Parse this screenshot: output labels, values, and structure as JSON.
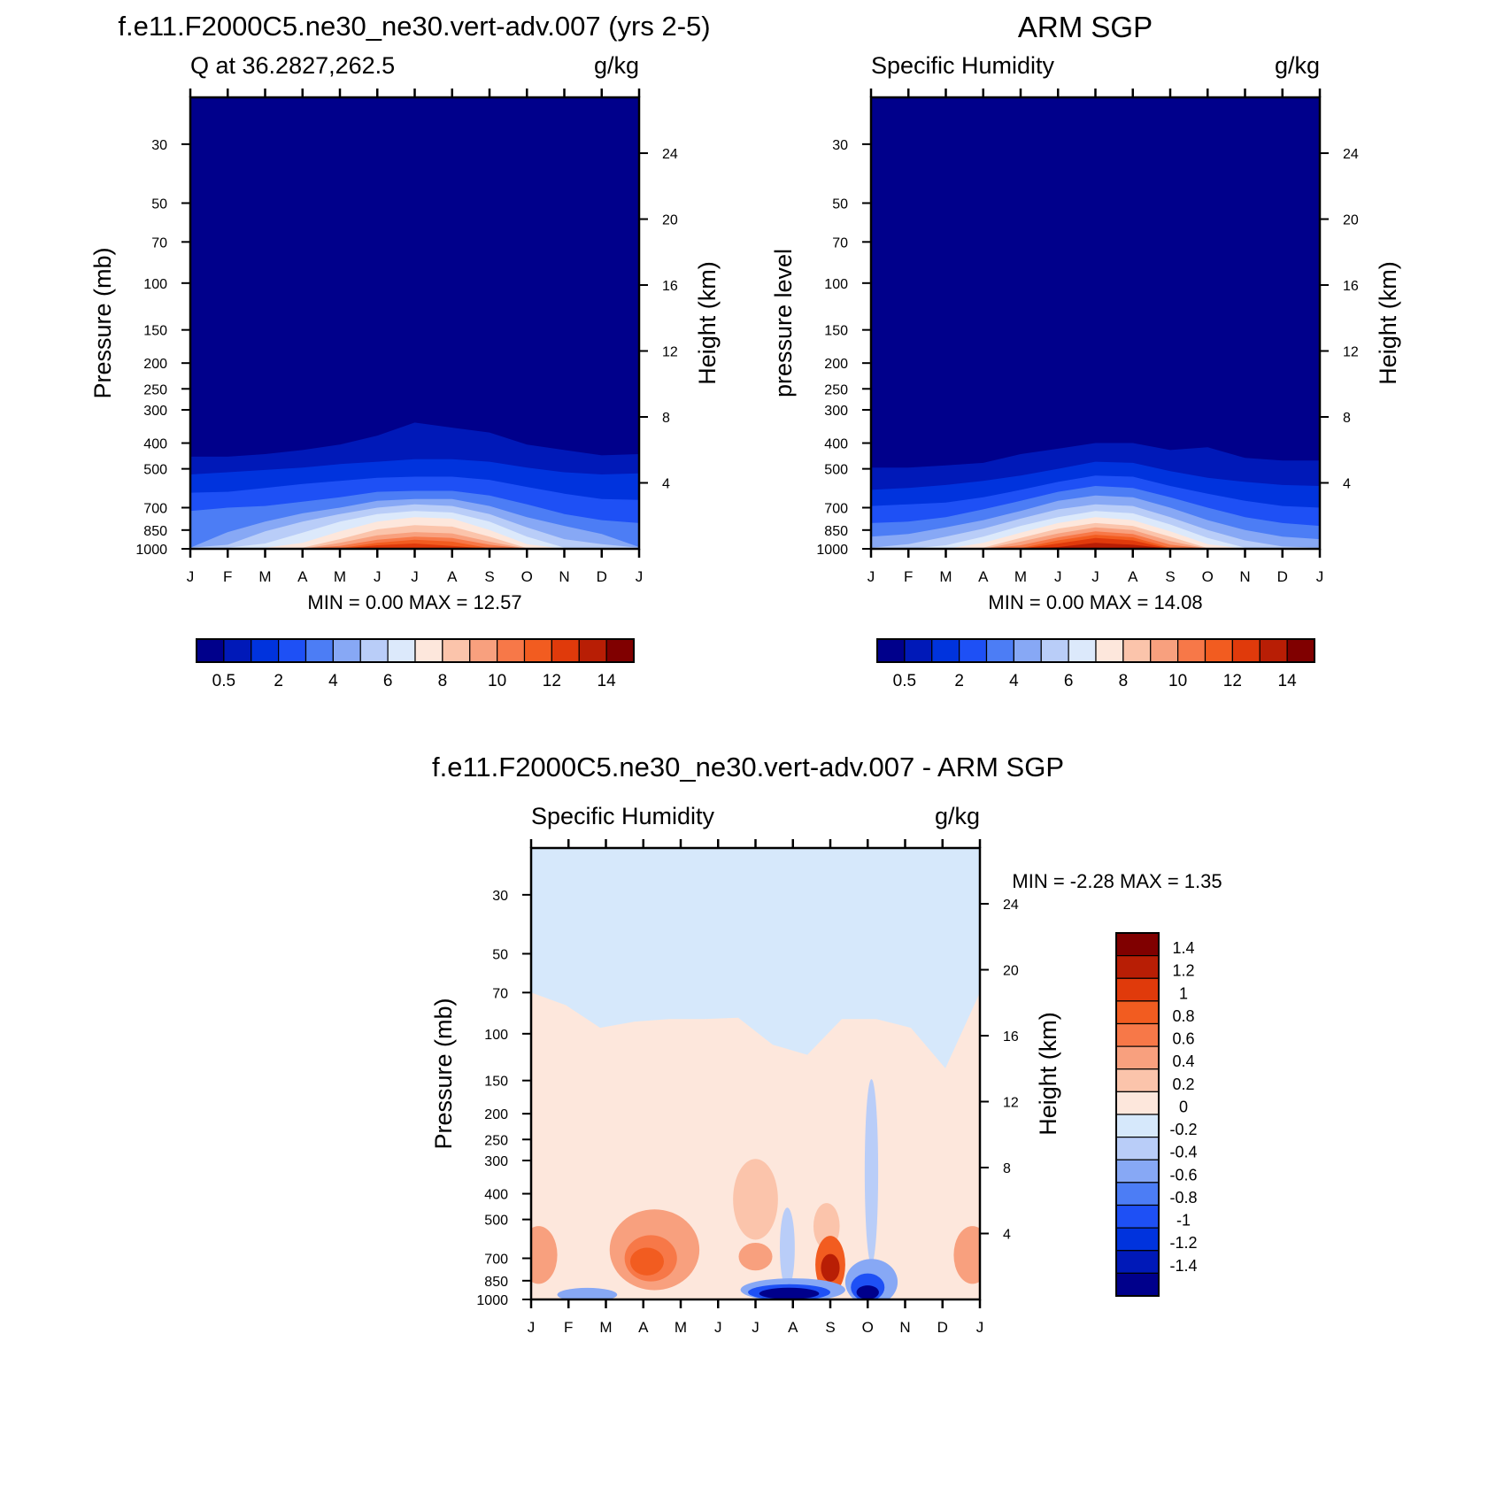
{
  "figure": {
    "titles": {
      "model": "f.e11.F2000C5.ne30_ne30.vert-adv.007 (yrs 2-5)",
      "obs": "ARM SGP",
      "diff": "f.e11.F2000C5.ne30_ne30.vert-adv.007 - ARM SGP"
    }
  },
  "chart_data": [
    {
      "id": "model",
      "type": "heatmap",
      "left_label": "Q at 36.2827,262.5",
      "right_label": "g/kg",
      "ylabel": "Pressure (mb)",
      "ylabel_right": "Height (km)",
      "x_ticks": [
        "J",
        "F",
        "M",
        "A",
        "M",
        "J",
        "J",
        "A",
        "S",
        "O",
        "N",
        "D",
        "J"
      ],
      "y_ticks": [
        30,
        50,
        70,
        100,
        150,
        200,
        250,
        300,
        400,
        500,
        700,
        850,
        1000
      ],
      "y_right_ticks": [
        24,
        20,
        16,
        12,
        8,
        4
      ],
      "ylim": [
        1000,
        20
      ],
      "y_scale": "log",
      "stats": "MIN =   0.00 MAX =  12.57",
      "colorbar": {
        "orientation": "horizontal",
        "labels": [
          "0.5",
          "2",
          "4",
          "6",
          "8",
          "10",
          "12",
          "14"
        ],
        "colors": [
          "#00008b",
          "#0019b8",
          "#0033dd",
          "#1e50f5",
          "#4c7df5",
          "#87a8f5",
          "#b9cdf8",
          "#dce9fb",
          "#fde7dc",
          "#fbc4ab",
          "#f8a07e",
          "#f77848",
          "#f25c20",
          "#e03a0b",
          "#b81e05",
          "#800000"
        ]
      },
      "fields": [
        {
          "level": 0.5,
          "top": [
            450,
            450,
            440,
            425,
            405,
            375,
            335,
            350,
            365,
            405,
            425,
            445,
            440
          ]
        },
        {
          "level": 1,
          "top": [
            525,
            515,
            505,
            495,
            480,
            470,
            460,
            460,
            470,
            495,
            515,
            525,
            520
          ]
        },
        {
          "level": 2,
          "top": [
            615,
            610,
            590,
            570,
            555,
            540,
            535,
            535,
            550,
            585,
            620,
            650,
            655
          ]
        },
        {
          "level": 3,
          "top": [
            720,
            700,
            690,
            665,
            640,
            610,
            605,
            605,
            630,
            680,
            740,
            780,
            800
          ]
        },
        {
          "level": 4,
          "top": [
            990,
            865,
            790,
            735,
            700,
            660,
            650,
            650,
            690,
            760,
            820,
            880,
            985
          ]
        },
        {
          "level": 5,
          "top": [
            990,
            965,
            860,
            790,
            740,
            700,
            680,
            690,
            740,
            830,
            920,
            960,
            990
          ]
        },
        {
          "level": 6,
          "top": [
            990,
            990,
            955,
            870,
            790,
            740,
            720,
            730,
            790,
            900,
            990,
            990,
            990
          ]
        },
        {
          "level": 7,
          "top": [
            1000,
            1000,
            990,
            950,
            860,
            790,
            760,
            770,
            850,
            960,
            1000,
            1000,
            1000
          ]
        },
        {
          "level": 8,
          "top": [
            1000,
            1000,
            1000,
            990,
            920,
            845,
            815,
            825,
            900,
            995,
            1000,
            1000,
            1000
          ]
        },
        {
          "level": 9,
          "top": [
            1000,
            1000,
            1000,
            1000,
            950,
            890,
            865,
            875,
            940,
            1000,
            1000,
            1000,
            1000
          ]
        },
        {
          "level": 10,
          "top": [
            1000,
            1000,
            1000,
            1000,
            975,
            925,
            900,
            910,
            965,
            1000,
            1000,
            1000,
            1000
          ]
        },
        {
          "level": 11,
          "top": [
            1000,
            1000,
            1000,
            1000,
            995,
            950,
            925,
            940,
            995,
            1000,
            1000,
            1000,
            1000
          ]
        },
        {
          "level": 12,
          "top": [
            1000,
            1000,
            1000,
            1000,
            1000,
            970,
            955,
            975,
            1000,
            1000,
            1000,
            1000,
            1000
          ]
        }
      ]
    },
    {
      "id": "obs",
      "type": "heatmap",
      "left_label": "Specific Humidity",
      "right_label": "g/kg",
      "ylabel": "pressure level",
      "ylabel_right": "Height (km)",
      "x_ticks": [
        "J",
        "F",
        "M",
        "A",
        "M",
        "J",
        "J",
        "A",
        "S",
        "O",
        "N",
        "D",
        "J"
      ],
      "y_ticks": [
        30,
        50,
        70,
        100,
        150,
        200,
        250,
        300,
        400,
        500,
        700,
        850,
        1000
      ],
      "y_right_ticks": [
        24,
        20,
        16,
        12,
        8,
        4
      ],
      "ylim": [
        1000,
        20
      ],
      "y_scale": "log",
      "stats": "MIN =   0.00 MAX =  14.08",
      "colorbar": {
        "orientation": "horizontal",
        "labels": [
          "0.5",
          "2",
          "4",
          "6",
          "8",
          "10",
          "12",
          "14"
        ],
        "colors": [
          "#00008b",
          "#0019b8",
          "#0033dd",
          "#1e50f5",
          "#4c7df5",
          "#87a8f5",
          "#b9cdf8",
          "#dce9fb",
          "#fde7dc",
          "#fbc4ab",
          "#f8a07e",
          "#f77848",
          "#f25c20",
          "#e03a0b",
          "#b81e05",
          "#800000"
        ]
      },
      "fields": [
        {
          "level": 0.5,
          "top": [
            495,
            495,
            485,
            475,
            440,
            420,
            400,
            400,
            425,
            415,
            455,
            465,
            465
          ]
        },
        {
          "level": 1,
          "top": [
            600,
            590,
            575,
            555,
            530,
            500,
            470,
            475,
            510,
            540,
            560,
            575,
            580
          ]
        },
        {
          "level": 2,
          "top": [
            690,
            680,
            670,
            640,
            600,
            560,
            530,
            535,
            580,
            620,
            660,
            690,
            700
          ]
        },
        {
          "level": 3,
          "top": [
            800,
            790,
            760,
            710,
            660,
            610,
            580,
            590,
            640,
            700,
            760,
            800,
            820
          ]
        },
        {
          "level": 4,
          "top": [
            900,
            880,
            830,
            780,
            720,
            660,
            630,
            640,
            700,
            780,
            850,
            900,
            920
          ]
        },
        {
          "level": 5,
          "top": [
            990,
            960,
            900,
            840,
            770,
            710,
            680,
            690,
            760,
            850,
            930,
            980,
            990
          ]
        },
        {
          "level": 6,
          "top": [
            1000,
            1000,
            970,
            900,
            820,
            760,
            720,
            735,
            810,
            910,
            990,
            1000,
            1000
          ]
        },
        {
          "level": 7,
          "top": [
            1000,
            1000,
            1000,
            950,
            870,
            800,
            760,
            780,
            860,
            960,
            1000,
            1000,
            1000
          ]
        },
        {
          "level": 8,
          "top": [
            1000,
            1000,
            1000,
            990,
            910,
            840,
            800,
            820,
            900,
            995,
            1000,
            1000,
            1000
          ]
        },
        {
          "level": 9,
          "top": [
            1000,
            1000,
            1000,
            1000,
            940,
            875,
            830,
            850,
            935,
            1000,
            1000,
            1000,
            1000
          ]
        },
        {
          "level": 10,
          "top": [
            1000,
            1000,
            1000,
            1000,
            970,
            905,
            860,
            880,
            965,
            1000,
            1000,
            1000,
            1000
          ]
        },
        {
          "level": 11,
          "top": [
            1000,
            1000,
            1000,
            1000,
            995,
            930,
            885,
            905,
            990,
            1000,
            1000,
            1000,
            1000
          ]
        },
        {
          "level": 12,
          "top": [
            1000,
            1000,
            1000,
            1000,
            1000,
            955,
            910,
            930,
            1000,
            1000,
            1000,
            1000,
            1000
          ]
        },
        {
          "level": 13,
          "top": [
            1000,
            1000,
            1000,
            1000,
            1000,
            985,
            950,
            965,
            1000,
            1000,
            1000,
            1000,
            1000
          ]
        },
        {
          "level": 14,
          "top": [
            1000,
            1000,
            1000,
            1000,
            1000,
            1000,
            990,
            1000,
            1000,
            1000,
            1000,
            1000,
            1000
          ]
        }
      ]
    },
    {
      "id": "diff",
      "type": "heatmap",
      "left_label": "Specific Humidity",
      "right_label": "g/kg",
      "ylabel": "Pressure (mb)",
      "ylabel_right": "Height (km)",
      "x_ticks": [
        "J",
        "F",
        "M",
        "A",
        "M",
        "J",
        "J",
        "A",
        "S",
        "O",
        "N",
        "D",
        "J"
      ],
      "y_ticks": [
        30,
        50,
        70,
        100,
        150,
        200,
        250,
        300,
        400,
        500,
        700,
        850,
        1000
      ],
      "y_right_ticks": [
        24,
        20,
        16,
        12,
        8,
        4
      ],
      "ylim": [
        1000,
        20
      ],
      "y_scale": "log",
      "stats": "MIN =  -2.28 MAX =   1.35",
      "background": "#d6e8fb",
      "colorbar": {
        "orientation": "vertical",
        "labels": [
          "1.4",
          "1.2",
          "1",
          "0.8",
          "0.6",
          "0.4",
          "0.2",
          "0",
          "-0.2",
          "-0.4",
          "-0.6",
          "-0.8",
          "-1",
          "-1.2",
          "-1.4"
        ],
        "colors": [
          "#800000",
          "#b81e05",
          "#e03a0b",
          "#f25c20",
          "#f77848",
          "#f8a07e",
          "#fbc4ab",
          "#fde7dc",
          "#d6e8fb",
          "#b9cdf8",
          "#87a8f5",
          "#4c7df5",
          "#1e50f5",
          "#0033dd",
          "#0019b8",
          "#00008b"
        ]
      },
      "positive_region_top": [
        70,
        78,
        95,
        90,
        88,
        88,
        87,
        110,
        120,
        88,
        88,
        95,
        135,
        70
      ],
      "blobs": [
        {
          "value": 0.2,
          "month": 6.0,
          "p": 420,
          "dx": 0.6,
          "dp": 0.35
        },
        {
          "value": 0.2,
          "month": 7.9,
          "p": 530,
          "dx": 0.35,
          "dp": 0.2
        },
        {
          "value": 0.4,
          "month": 0.2,
          "p": 680,
          "dx": 0.5,
          "dp": 0.25
        },
        {
          "value": 0.4,
          "month": 11.8,
          "p": 680,
          "dx": 0.5,
          "dp": 0.25
        },
        {
          "value": 0.4,
          "month": 3.3,
          "p": 650,
          "dx": 1.2,
          "dp": 0.35
        },
        {
          "value": 0.6,
          "month": 3.2,
          "p": 700,
          "dx": 0.7,
          "dp": 0.2
        },
        {
          "value": 0.8,
          "month": 3.1,
          "p": 720,
          "dx": 0.45,
          "dp": 0.12
        },
        {
          "value": 0.4,
          "month": 6.0,
          "p": 690,
          "dx": 0.45,
          "dp": 0.12
        },
        {
          "value": 0.8,
          "month": 8.0,
          "p": 740,
          "dx": 0.4,
          "dp": 0.25
        },
        {
          "value": 1.2,
          "month": 8.0,
          "p": 760,
          "dx": 0.25,
          "dp": 0.12
        },
        {
          "value": -0.2,
          "month": 6.85,
          "p": 640,
          "dx": 0.2,
          "dp": 0.35
        },
        {
          "value": -0.2,
          "month": 9.1,
          "p": 330,
          "dx": 0.18,
          "dp": 0.8
        },
        {
          "value": -0.4,
          "month": 1.5,
          "p": 960,
          "dx": 0.8,
          "dp": 0.06
        },
        {
          "value": -0.4,
          "month": 7.0,
          "p": 920,
          "dx": 1.4,
          "dp": 0.1
        },
        {
          "value": -0.8,
          "month": 6.9,
          "p": 940,
          "dx": 1.1,
          "dp": 0.07
        },
        {
          "value": -1.4,
          "month": 6.9,
          "p": 950,
          "dx": 0.8,
          "dp": 0.05
        },
        {
          "value": -0.4,
          "month": 9.1,
          "p": 860,
          "dx": 0.7,
          "dp": 0.2
        },
        {
          "value": -0.8,
          "month": 9.0,
          "p": 900,
          "dx": 0.45,
          "dp": 0.12
        },
        {
          "value": -1.4,
          "month": 9.0,
          "p": 940,
          "dx": 0.3,
          "dp": 0.06
        }
      ]
    }
  ]
}
